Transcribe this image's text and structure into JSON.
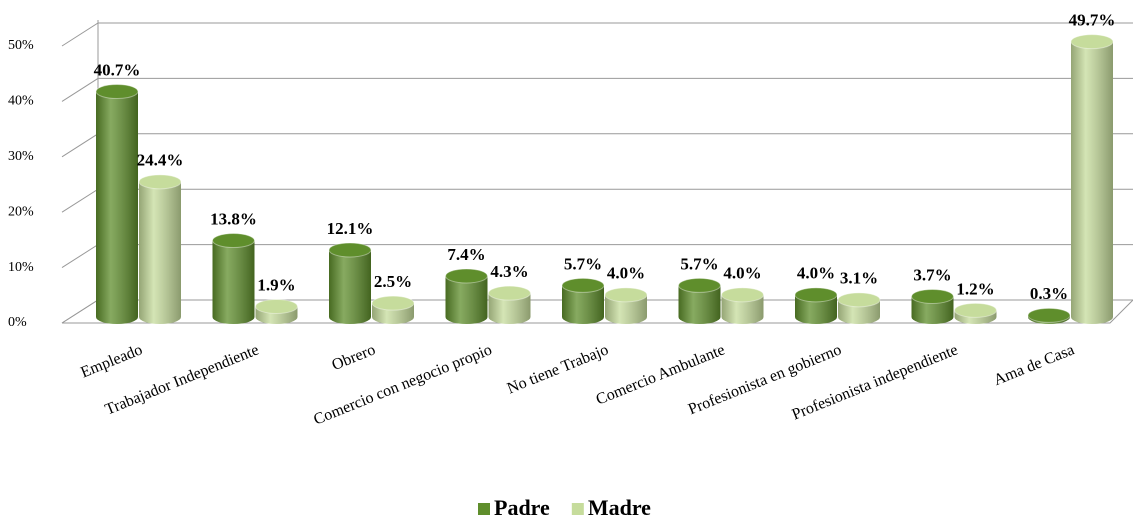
{
  "chart_data": {
    "type": "bar",
    "categories": [
      "Empleado",
      "Trabajador Independiente",
      "Obrero",
      "Comercio con negocio propio",
      "No tiene Trabajo",
      "Comercio  Ambulante",
      "Profesionista  en gobierno",
      "Profesionista  independiente",
      "Ama de Casa"
    ],
    "series": [
      {
        "name": "Padre",
        "color": "#5f8e2c",
        "values": [
          40.7,
          13.8,
          12.1,
          7.4,
          5.7,
          5.7,
          4.0,
          3.7,
          0.3
        ],
        "value_labels": [
          "40.7%",
          "13.8%",
          "12.1%",
          "7.4%",
          "5.7%",
          "5.7%",
          "4.0%",
          "3.7%",
          "0.3%"
        ]
      },
      {
        "name": "Madre",
        "color": "#c6dc9c",
        "values": [
          24.4,
          1.9,
          2.5,
          4.3,
          4.0,
          4.0,
          3.1,
          1.2,
          49.7
        ],
        "value_labels": [
          "24.4%",
          "1.9%",
          "2.5%",
          "4.3%",
          "4.0%",
          "4.0%",
          "3.1%",
          "1.2%",
          "49.7%"
        ]
      }
    ],
    "ylim": [
      0,
      50
    ],
    "yticks": [
      {
        "value": 0,
        "label": "0%"
      },
      {
        "value": 10,
        "label": "10%"
      },
      {
        "value": 20,
        "label": "20%"
      },
      {
        "value": 30,
        "label": "30%"
      },
      {
        "value": 40,
        "label": "40%"
      },
      {
        "value": 50,
        "label": "50%"
      }
    ],
    "grid": true,
    "legend": "bottom"
  }
}
